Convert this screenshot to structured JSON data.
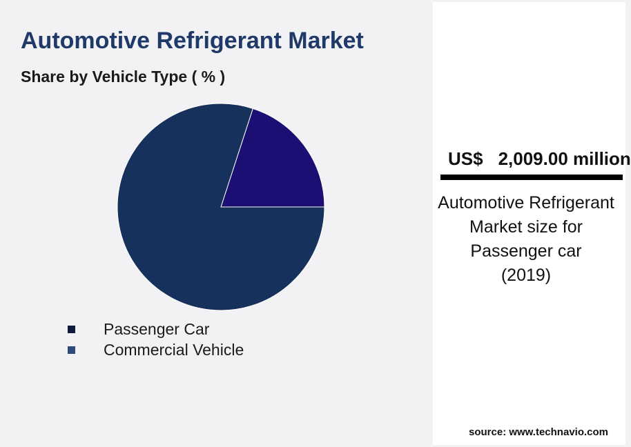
{
  "title": "Automotive Refrigerant Market",
  "subtitle": "Share by Vehicle Type ( % )",
  "colors": {
    "title": "#1f3a68",
    "passenger_car": "#16325c",
    "commercial_vehicle": "#1b0f73",
    "legend_passenger_car": "#0f1a3d",
    "legend_commercial_vehicle": "#2f4a7a"
  },
  "chart_data": {
    "type": "pie",
    "title": "Share by Vehicle Type ( % )",
    "categories": [
      "Passenger Car",
      "Commercial Vehicle"
    ],
    "values": [
      80,
      20
    ],
    "legend_position": "bottom-left"
  },
  "legend": {
    "items": [
      {
        "label": "Passenger Car"
      },
      {
        "label": "Commercial Vehicle"
      }
    ]
  },
  "highlight": {
    "currency": "US$",
    "value": "2,009.00 million",
    "description": "Automotive Refrigerant Market size for Passenger car",
    "year": "(2019)"
  },
  "source": "source: www.technavio.com"
}
